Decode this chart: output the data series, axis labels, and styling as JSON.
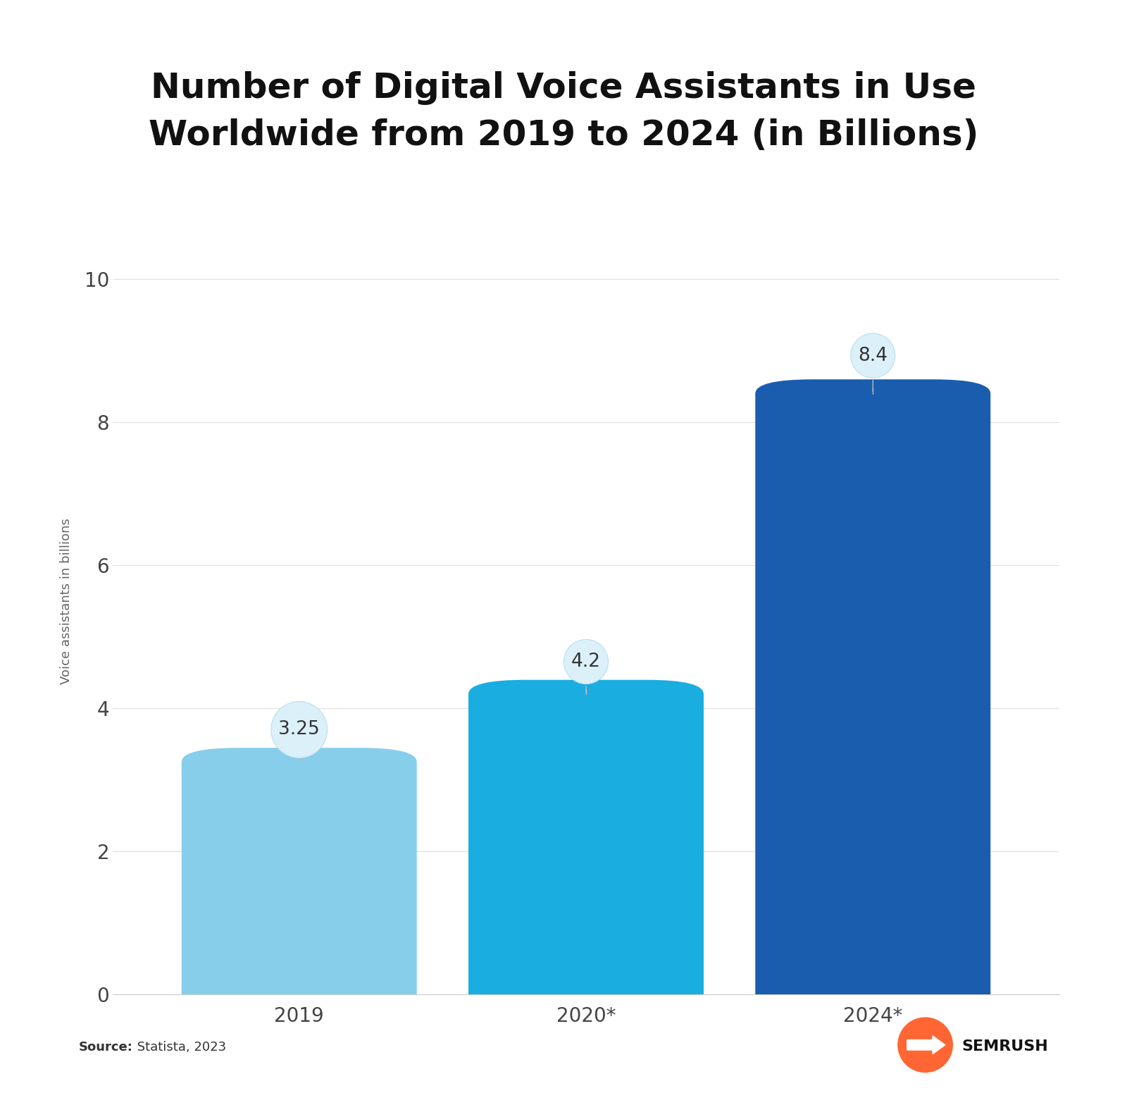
{
  "title": "Number of Digital Voice Assistants in Use\nWorldwide from 2019 to 2024 (in Billions)",
  "categories": [
    "2019",
    "2020*",
    "2024*"
  ],
  "values": [
    3.25,
    4.2,
    8.4
  ],
  "bar_colors": [
    "#87CEEB",
    "#1AADE0",
    "#1A5DAF"
  ],
  "ylabel": "Voice assistants in billions",
  "ylim": [
    0,
    11
  ],
  "yticks": [
    0,
    2,
    4,
    6,
    8,
    10
  ],
  "background_color": "#ffffff",
  "title_fontsize": 36,
  "axis_label_fontsize": 13,
  "tick_fontsize": 20,
  "source_bold": "Source:",
  "source_normal": " Statista, 2023",
  "bubble_fill": "#DCF0FA",
  "bubble_edge": "#B8DFF0",
  "value_labels": [
    "3.25",
    "4.2",
    "8.4"
  ],
  "bubble_label_fontsize": 19
}
